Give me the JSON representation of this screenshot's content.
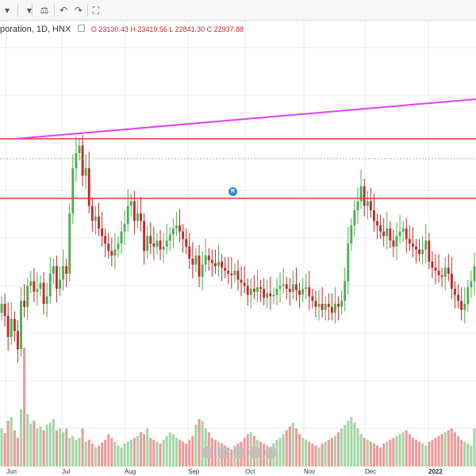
{
  "toolbar": {
    "buttons": [
      {
        "name": "chart-type-icon",
        "glyph": "▾"
      },
      {
        "name": "compare-icon",
        "glyph": "⚖"
      },
      {
        "name": "undo-icon",
        "glyph": "↶"
      },
      {
        "name": "redo-icon",
        "glyph": "↷"
      },
      {
        "name": "fullscreen-icon",
        "glyph": "⛶"
      }
    ]
  },
  "legend": {
    "symbol": "poration, 1D, HNX",
    "ohlc": "O 23130.43  H 23419.56  L 22841.30  C 22937.88"
  },
  "signal_marker": "R",
  "colors": {
    "up": "#4caf50",
    "down": "#c62828",
    "vol_up": "#a5d6a7",
    "vol_down": "#ef9a9a",
    "trendline": "#e040fb",
    "hline": "#e53935",
    "dotted": "#81c784",
    "grid": "#ececec"
  },
  "chart_data": {
    "type": "candlestick",
    "symbol": "poration, 1D, HNX",
    "x_labels": [
      "Jun",
      "Jul",
      "Aug",
      "Sep",
      "Oct",
      "Nov",
      "Dec",
      "2022"
    ],
    "x_label_pos": [
      0,
      20,
      40,
      60,
      80,
      100,
      120,
      140
    ],
    "closes": [
      60,
      52,
      38,
      50,
      42,
      30,
      62,
      58,
      72,
      75,
      68,
      70,
      74,
      60,
      65,
      80,
      85,
      70,
      76,
      85,
      80,
      120,
      150,
      160,
      165,
      145,
      150,
      125,
      115,
      118,
      110,
      105,
      100,
      95,
      92,
      96,
      100,
      108,
      113,
      125,
      128,
      115,
      120,
      115,
      95,
      105,
      100,
      98,
      102,
      96,
      98,
      102,
      106,
      110,
      112,
      108,
      103,
      98,
      90,
      86,
      92,
      78,
      86,
      92,
      89,
      87,
      85,
      88,
      84,
      82,
      80,
      79,
      82,
      76,
      74,
      72,
      66,
      70,
      68,
      71,
      70,
      64,
      67,
      65,
      66,
      70,
      72,
      73,
      70,
      68,
      73,
      69,
      66,
      70,
      71,
      65,
      62,
      58,
      60,
      56,
      60,
      58,
      54,
      60,
      58,
      62,
      75,
      100,
      112,
      122,
      128,
      138,
      125,
      128,
      122,
      115,
      112,
      108,
      105,
      110,
      102,
      98,
      105,
      108,
      110,
      103,
      100,
      98,
      96,
      93,
      96,
      102,
      88,
      84,
      82,
      79,
      78,
      84,
      80,
      70,
      66,
      62,
      56,
      60,
      71,
      75,
      85
    ],
    "y_levels": {
      "upper_hline": 175,
      "lower_hline": 250,
      "dotted": 200
    },
    "volumes": [
      40,
      35,
      48,
      52,
      38,
      30,
      60,
      125,
      55,
      45,
      48,
      40,
      42,
      38,
      44,
      46,
      50,
      38,
      40,
      36,
      40,
      30,
      32,
      28,
      30,
      40,
      26,
      28,
      24,
      20,
      22,
      25,
      28,
      34,
      30,
      26,
      22,
      20,
      24,
      26,
      28,
      30,
      32,
      36,
      34,
      40,
      30,
      28,
      26,
      24,
      28,
      32,
      36,
      34,
      30,
      28,
      26,
      24,
      28,
      32,
      44,
      50,
      48,
      40,
      36,
      30,
      28,
      26,
      24,
      22,
      20,
      18,
      22,
      24,
      26,
      30,
      34,
      36,
      32,
      28,
      26,
      24,
      22,
      20,
      24,
      28,
      30,
      34,
      38,
      42,
      46,
      40,
      34,
      30,
      28,
      26,
      24,
      22,
      20,
      24,
      26,
      28,
      30,
      32,
      36,
      40,
      44,
      48,
      52,
      46,
      40,
      34,
      30,
      28,
      26,
      24,
      22,
      20,
      24,
      26,
      28,
      30,
      32,
      34,
      36,
      38,
      34,
      30,
      28,
      26,
      24,
      22,
      26,
      28,
      30,
      32,
      34,
      36,
      38,
      40,
      36,
      32,
      28,
      26,
      24,
      22
    ],
    "trendline": {
      "from": [
        19,
        175
      ],
      "to": [
        600,
        125
      ]
    }
  }
}
